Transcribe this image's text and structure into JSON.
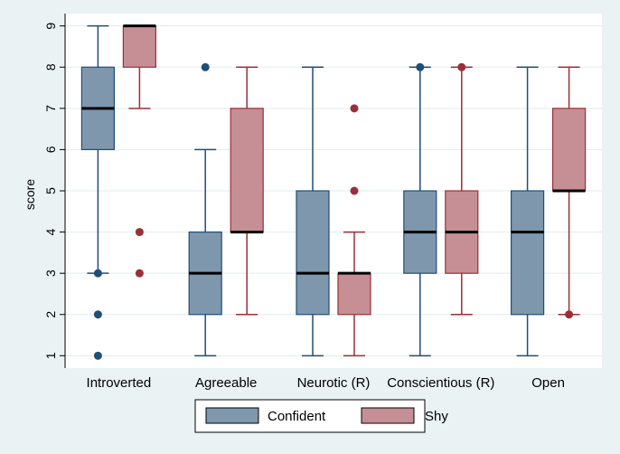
{
  "chart_data": {
    "type": "boxplot",
    "title": "",
    "xlabel": "",
    "ylabel": "score",
    "ylim": [
      0.7,
      9.3
    ],
    "yticks": [
      1,
      2,
      3,
      4,
      5,
      6,
      7,
      8,
      9
    ],
    "categories": [
      "Introverted",
      "Agreeable",
      "Neurotic (R)",
      "Conscientious (R)",
      "Open"
    ],
    "series": [
      {
        "name": "Confident",
        "color": "#7e97ad",
        "outlier_color": "#1f4e79",
        "boxes": [
          {
            "whisker_low": 3,
            "q1": 6,
            "median": 7,
            "q3": 8,
            "whisker_high": 9,
            "outliers": [
              3,
              2,
              1
            ]
          },
          {
            "whisker_low": 1,
            "q1": 2,
            "median": 3,
            "q3": 4,
            "whisker_high": 6,
            "outliers": [
              8
            ]
          },
          {
            "whisker_low": 1,
            "q1": 2,
            "median": 3,
            "q3": 5,
            "whisker_high": 8,
            "outliers": []
          },
          {
            "whisker_low": 1,
            "q1": 3,
            "median": 4,
            "q3": 5,
            "whisker_high": 8,
            "outliers": [
              8
            ]
          },
          {
            "whisker_low": 1,
            "q1": 2,
            "median": 4,
            "q3": 5,
            "whisker_high": 8,
            "outliers": []
          }
        ]
      },
      {
        "name": "Shy",
        "color": "#c58f95",
        "outlier_color": "#9b2f37",
        "boxes": [
          {
            "whisker_low": 7,
            "q1": 8,
            "median": 9,
            "q3": 9,
            "whisker_high": 9,
            "outliers": [
              4,
              3
            ]
          },
          {
            "whisker_low": 2,
            "q1": 4,
            "median": 4,
            "q3": 7,
            "whisker_high": 8,
            "outliers": []
          },
          {
            "whisker_low": 1,
            "q1": 2,
            "median": 3,
            "q3": 3,
            "whisker_high": 4,
            "outliers": [
              7,
              5
            ]
          },
          {
            "whisker_low": 2,
            "q1": 3,
            "median": 4,
            "q3": 5,
            "whisker_high": 8,
            "outliers": [
              8
            ]
          },
          {
            "whisker_low": 2,
            "q1": 5,
            "median": 5,
            "q3": 7,
            "whisker_high": 8,
            "outliers": [
              2
            ]
          }
        ]
      }
    ],
    "legend": {
      "placement": "bottom",
      "entries": [
        "Confident",
        "Shy"
      ]
    },
    "colors": {
      "background": "#eaf2f3",
      "plot_background": "#ffffff",
      "grid": "#e3ebee",
      "median": "#000000"
    }
  }
}
